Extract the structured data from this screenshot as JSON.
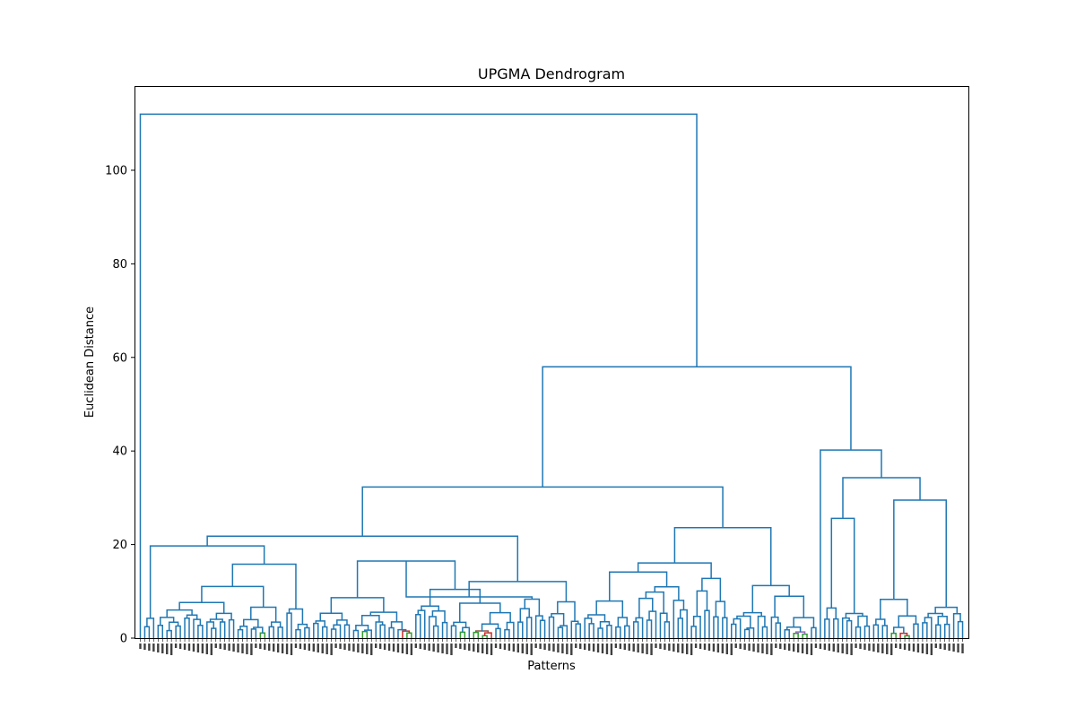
{
  "chart_data": {
    "type": "dendrogram",
    "title": "UPGMA Dendrogram",
    "xlabel": "Patterns",
    "ylabel": "Euclidean Distance",
    "ylim": [
      0,
      118
    ],
    "yticks": [
      0,
      20,
      40,
      60,
      80,
      100
    ],
    "grid": false,
    "leaf_count": 186,
    "colors": {
      "above_threshold": "#1f77b4",
      "cluster_palette": [
        "#ff7f0e",
        "#2ca02c",
        "#d62728",
        "#9467bd",
        "#8c564b",
        "#e377c2",
        "#bcbd22",
        "#17becf"
      ]
    },
    "merges": [
      {
        "left_leaf_range": [
          1,
          1
        ],
        "right_leaf_range": [
          2,
          186
        ],
        "height": 112.0
      },
      {
        "left_leaf_range": [
          2,
          153
        ],
        "right_leaf_range": [
          154,
          186
        ],
        "height": 58.0
      },
      {
        "left_leaf_range": [
          2,
          100
        ],
        "right_leaf_range": [
          101,
          153
        ],
        "height": 32.3
      },
      {
        "left_leaf_range": [
          2,
          39
        ],
        "right_leaf_range": [
          40,
          100
        ],
        "height": 21.8
      },
      {
        "left_leaf_range": [
          154,
          154
        ],
        "right_leaf_range": [
          155,
          186
        ],
        "height": 40.2
      },
      {
        "left_leaf_range": [
          155,
          165
        ],
        "right_leaf_range": [
          166,
          186
        ],
        "height": 34.3
      },
      {
        "left_leaf_range": [
          166,
          176
        ],
        "right_leaf_range": [
          177,
          186
        ],
        "height": 29.5
      },
      {
        "left_leaf_range": [
          155,
          158
        ],
        "right_leaf_range": [
          159,
          165
        ],
        "height": 25.6
      },
      {
        "left_leaf_range": [
          101,
          133
        ],
        "right_leaf_range": [
          134,
          153
        ],
        "height": 23.6
      },
      {
        "left_leaf_range": [
          2,
          4
        ],
        "right_leaf_range": [
          5,
          39
        ],
        "height": 19.7
      },
      {
        "left_leaf_range": [
          5,
          33
        ],
        "right_leaf_range": [
          34,
          39
        ],
        "height": 15.8
      },
      {
        "left_leaf_range": [
          40,
          92
        ],
        "right_leaf_range": [
          93,
          100
        ],
        "height": 12.1
      },
      {
        "left_leaf_range": [
          40,
          85
        ],
        "right_leaf_range": [
          86,
          92
        ],
        "height": 8.8
      }
    ]
  }
}
